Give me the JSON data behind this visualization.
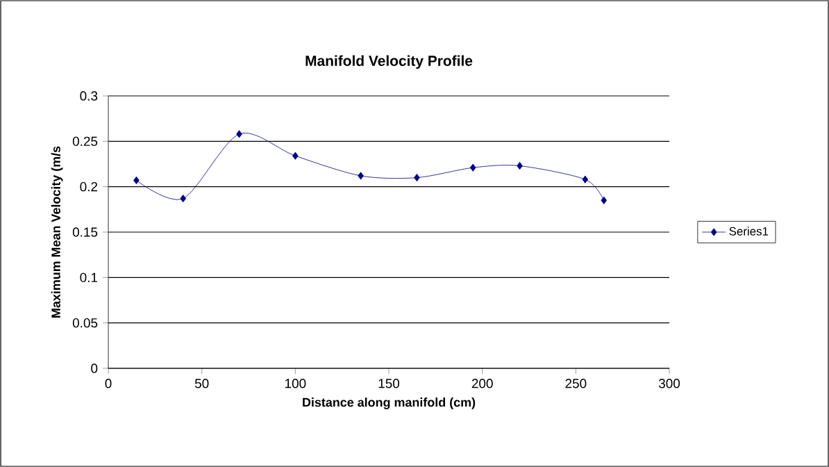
{
  "chart_data": {
    "type": "line",
    "title": "Manifold Velocity Profile",
    "xlabel": "Distance along manifold (cm)",
    "ylabel": "Maximum Mean Velocity (m/s",
    "x": [
      15,
      40,
      70,
      100,
      135,
      165,
      195,
      220,
      255,
      265
    ],
    "series": [
      {
        "name": "Series1",
        "color": "#000080",
        "values": [
          0.207,
          0.187,
          0.258,
          0.234,
          0.212,
          0.21,
          0.221,
          0.223,
          0.208,
          0.185
        ]
      }
    ],
    "xlim": [
      0,
      300
    ],
    "xticks": [
      0,
      50,
      100,
      150,
      200,
      250,
      300
    ],
    "ylim": [
      0,
      0.3
    ],
    "yticks": [
      0,
      0.05,
      0.1,
      0.15,
      0.2,
      0.25,
      0.3
    ],
    "grid": "y",
    "legend": "right",
    "marker": "diamond",
    "line_style": "solid"
  }
}
